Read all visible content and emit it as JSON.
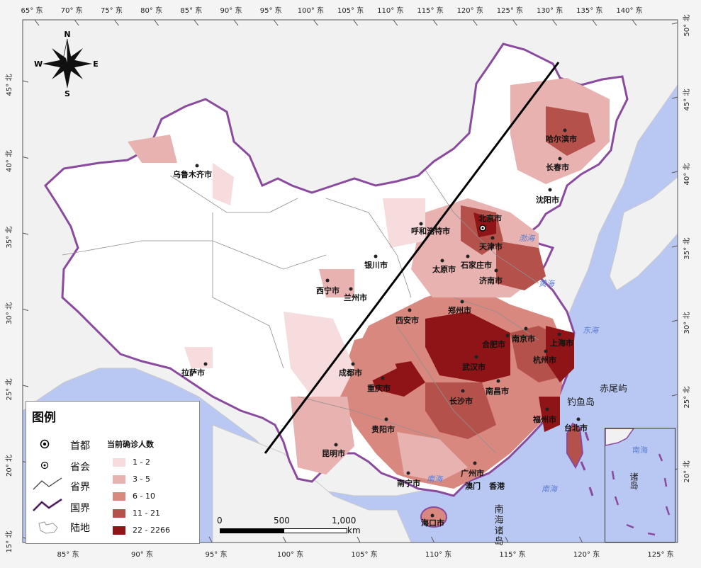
{
  "coordinates": {
    "top_ticks": [
      "65° 东",
      "70° 东",
      "75° 东",
      "80° 东",
      "85° 东",
      "90° 东",
      "95° 东",
      "100° 东",
      "105° 东",
      "110° 东",
      "115° 东",
      "120° 东",
      "125° 东",
      "130° 东",
      "135° 东",
      "140° 东"
    ],
    "bottom_ticks": [
      "85° 东",
      "90° 东",
      "95° 东",
      "100° 东",
      "105° 东",
      "110° 东",
      "115° 东",
      "120° 东",
      "125° 东"
    ],
    "left_ticks": [
      "45° 北",
      "40° 北",
      "35° 北",
      "30° 北",
      "25° 北",
      "20° 北",
      "15° 北"
    ],
    "right_ticks": [
      "50° 北",
      "45° 北",
      "40° 北",
      "35° 北",
      "30° 北",
      "25° 北",
      "20° 北"
    ]
  },
  "compass": {
    "n": "N",
    "s": "S",
    "e": "E",
    "w": "W"
  },
  "cities": {
    "urumqi": "乌鲁木齐市",
    "lhasa": "拉萨市",
    "xining": "西宁市",
    "lanzhou": "兰州市",
    "yinchuan": "银川市",
    "hohhot": "呼和浩特市",
    "beijing": "北京市",
    "tianjin": "天津市",
    "shijiazhuang": "石家庄市",
    "taiyuan": "太原市",
    "jinan": "济南市",
    "zhengzhou": "郑州市",
    "xian": "西安市",
    "chengdu": "成都市",
    "chongqing": "重庆市",
    "wuhan": "武汉市",
    "hefei": "合肥市",
    "nanjing": "南京市",
    "shanghai": "上海市",
    "hangzhou": "杭州市",
    "nanchang": "南昌市",
    "changsha": "长沙市",
    "guiyang": "贵阳市",
    "kunming": "昆明市",
    "nanning": "南宁市",
    "guangzhou": "广州市",
    "aomen": "澳门",
    "hongkong": "香港",
    "fuzhou": "福州市",
    "taipei": "台北市",
    "haikou": "海口市",
    "harbin": "哈尔滨市",
    "changchun": "长春市",
    "shenyang": "沈阳市"
  },
  "seas": {
    "bohai": "渤海",
    "huanghai": "黄海",
    "donghai": "东海",
    "nanhai1": "南海",
    "nanhai2": "南海"
  },
  "islands": {
    "chiwei": "赤尾屿",
    "diaoyu": "钓鱼岛",
    "nanhai_zhudao": "南海诸岛",
    "inset_nanhai": "南海",
    "inset_zhudao": "诸岛"
  },
  "legend": {
    "title": "图例",
    "capital": "首都",
    "provincial_capital": "省会",
    "provincial_border": "省界",
    "national_border": "国界",
    "land": "陆地",
    "cases_title": "当前确诊人数",
    "classes": [
      {
        "label": "1 - 2",
        "color": "#f6dcdc"
      },
      {
        "label": "3 - 5",
        "color": "#e8b2b0"
      },
      {
        "label": "6 - 10",
        "color": "#d98880"
      },
      {
        "label": "11 - 21",
        "color": "#b5514b"
      },
      {
        "label": "22 - 2266",
        "color": "#8e1417"
      }
    ]
  },
  "scale": {
    "zero": "0",
    "mid": "500",
    "max": "1,000",
    "unit": "km"
  },
  "colors": {
    "sea": "#b9c8f3",
    "land_out": "#f1f1f1",
    "no_case": "#ffffff",
    "border": "#8a4a9e"
  }
}
